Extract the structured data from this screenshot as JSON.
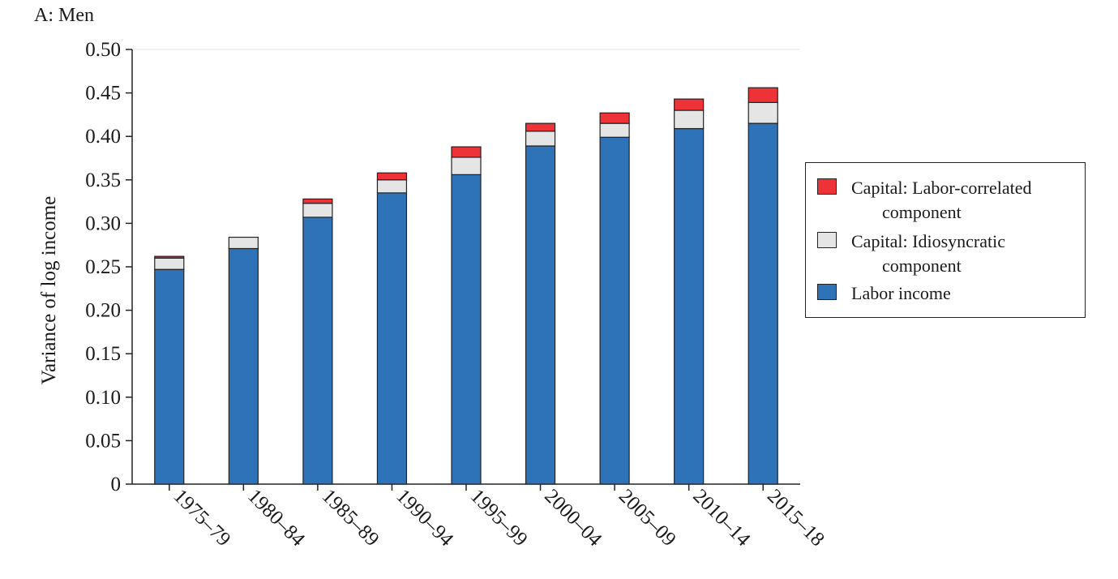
{
  "panel_title": "A: Men",
  "colors": {
    "labor": "#2e73b8",
    "idiosyncratic": "#e5e5e5",
    "labor_correlated": "#ee3338",
    "outline": "#222222"
  },
  "legend": {
    "labor_correlated": {
      "line1": "Capital: Labor-correlated",
      "line2": "component"
    },
    "idiosyncratic": {
      "line1": "Capital: Idiosyncratic",
      "line2": "component"
    },
    "labor": {
      "line1": "Labor income"
    }
  },
  "chart_data": {
    "type": "bar",
    "stacked": true,
    "title": "A: Men",
    "xlabel": "",
    "ylabel": "Variance of log income",
    "ylim": [
      0,
      0.5
    ],
    "yticks": [
      0,
      0.05,
      0.1,
      0.15,
      0.2,
      0.25,
      0.3,
      0.35,
      0.4,
      0.45,
      0.5
    ],
    "ytick_labels": [
      "0",
      "0.05",
      "0.10",
      "0.15",
      "0.20",
      "0.25",
      "0.30",
      "0.35",
      "0.40",
      "0.45",
      "0.50"
    ],
    "grid": false,
    "legend_position": "right",
    "categories": [
      "1975–79",
      "1980–84",
      "1985–89",
      "1990–94",
      "1995–99",
      "2000–04",
      "2005–09",
      "2010–14",
      "2015–18"
    ],
    "series": [
      {
        "name": "Labor income",
        "values": [
          0.247,
          0.271,
          0.307,
          0.335,
          0.356,
          0.389,
          0.399,
          0.409,
          0.415
        ]
      },
      {
        "name": "Capital: Idiosyncratic component",
        "values": [
          0.013,
          0.013,
          0.016,
          0.015,
          0.02,
          0.017,
          0.016,
          0.021,
          0.024
        ]
      },
      {
        "name": "Capital: Labor-correlated component",
        "values": [
          0.002,
          0.0,
          0.005,
          0.008,
          0.012,
          0.009,
          0.012,
          0.013,
          0.017
        ]
      }
    ]
  }
}
